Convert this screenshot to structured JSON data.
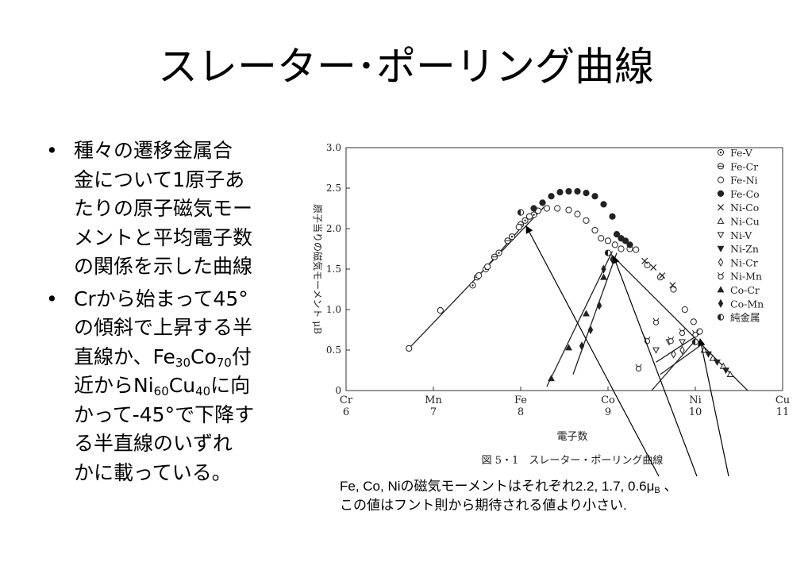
{
  "slide": {
    "title": "スレーター･ポーリング曲線"
  },
  "bullets": [
    {
      "lines": [
        "種々の遷移金属合",
        "金について1原子あ",
        "たりの原子磁気モー",
        "メントと平均電子数",
        "の関係を示した曲線"
      ]
    },
    {
      "lines": [
        [
          "Crから始まって45°"
        ],
        [
          "の傾斜で上昇する半"
        ],
        [
          "直線か、Fe",
          {
            "sub": "30"
          },
          "Co",
          {
            "sub": "70"
          },
          "付"
        ],
        [
          "近からNi",
          {
            "sub": "60"
          },
          "Cu",
          {
            "sub": "40"
          },
          "に向"
        ],
        [
          "かって-45°で下降す"
        ],
        [
          "る半直線のいずれ"
        ],
        [
          "かに載っている。"
        ]
      ]
    }
  ],
  "bullet_marker": "•",
  "caption": {
    "line1_main": "Fe, Co, Niの磁気モーメントはそれぞれ2.2, 1.7, 0.6μ",
    "line1_sub": "B",
    "line1_tail": " 、",
    "line2": "この値はフント則から期待される値より小さい."
  },
  "chart_data": {
    "type": "scatter",
    "title": "図 5・1　スレーター・ポーリング曲線",
    "xlabel": "電子数",
    "ylabel": "原子当りの磁気モーメント μB",
    "xlim": [
      6,
      11
    ],
    "ylim": [
      0,
      3.0
    ],
    "x_ticks": [
      {
        "x": 6,
        "elem": "Cr",
        "num": "6"
      },
      {
        "x": 7,
        "elem": "Mn",
        "num": "7"
      },
      {
        "x": 8,
        "elem": "Fe",
        "num": "8"
      },
      {
        "x": 9,
        "elem": "Co",
        "num": "9"
      },
      {
        "x": 10,
        "elem": "Ni",
        "num": "10"
      },
      {
        "x": 11,
        "elem": "Cu",
        "num": "11"
      }
    ],
    "y_ticks": [
      0,
      0.5,
      1.0,
      1.5,
      2.0,
      2.5,
      3.0
    ],
    "y_tick_labels": [
      "0",
      "0.5",
      "1.0",
      "1.5",
      "2.0",
      "2.5",
      "3.0"
    ],
    "legend_position": "top-right",
    "series": [
      {
        "name": "Fe-V",
        "marker": "circle-dot",
        "points": [
          [
            7.45,
            1.3
          ],
          [
            7.6,
            1.5
          ],
          [
            7.75,
            1.7
          ],
          [
            7.9,
            1.9
          ],
          [
            8.05,
            2.1
          ],
          [
            8.15,
            2.17
          ]
        ]
      },
      {
        "name": "Fe-Cr",
        "marker": "circle-bar",
        "points": [
          [
            7.5,
            1.4
          ],
          [
            7.7,
            1.65
          ],
          [
            7.85,
            1.85
          ],
          [
            8.0,
            2.05
          ]
        ]
      },
      {
        "name": "Fe-Ni",
        "marker": "circle-open",
        "points": [
          [
            6.72,
            0.52
          ],
          [
            7.08,
            0.99
          ],
          [
            7.52,
            1.42
          ],
          [
            7.62,
            1.53
          ],
          [
            7.98,
            2.02
          ],
          [
            8.1,
            2.15
          ],
          [
            8.2,
            2.22
          ],
          [
            8.3,
            2.25
          ],
          [
            8.42,
            2.25
          ],
          [
            8.55,
            2.23
          ],
          [
            8.65,
            2.18
          ],
          [
            8.75,
            2.1
          ],
          [
            8.85,
            1.98
          ],
          [
            8.92,
            1.88
          ],
          [
            9.0,
            1.85
          ],
          [
            9.08,
            1.8
          ],
          [
            9.15,
            1.75
          ],
          [
            9.25,
            1.75
          ],
          [
            9.32,
            1.74
          ],
          [
            9.45,
            1.55
          ],
          [
            9.6,
            1.4
          ],
          [
            9.75,
            1.25
          ],
          [
            9.88,
            1.0
          ],
          [
            9.98,
            0.85
          ],
          [
            10.05,
            0.73
          ]
        ]
      },
      {
        "name": "Fe-Co",
        "marker": "circle-filled",
        "points": [
          [
            8.15,
            2.25
          ],
          [
            8.25,
            2.32
          ],
          [
            8.35,
            2.4
          ],
          [
            8.45,
            2.45
          ],
          [
            8.55,
            2.46
          ],
          [
            8.65,
            2.46
          ],
          [
            8.75,
            2.44
          ],
          [
            8.85,
            2.4
          ],
          [
            8.95,
            2.3
          ],
          [
            9.05,
            2.15
          ],
          [
            9.1,
            1.93
          ],
          [
            9.15,
            1.88
          ],
          [
            9.2,
            1.85
          ],
          [
            9.25,
            1.8
          ]
        ]
      },
      {
        "name": "Ni-Co",
        "marker": "cross",
        "points": [
          [
            9.42,
            1.6
          ],
          [
            9.52,
            1.52
          ],
          [
            9.62,
            1.42
          ],
          [
            9.74,
            1.3
          ]
        ]
      },
      {
        "name": "Ni-Cu",
        "marker": "triangle-up",
        "points": [
          [
            10.1,
            0.5
          ],
          [
            10.2,
            0.4
          ],
          [
            10.32,
            0.3
          ],
          [
            10.4,
            0.2
          ]
        ]
      },
      {
        "name": "Ni-V",
        "marker": "triangle-down",
        "points": [
          [
            9.55,
            0.5
          ],
          [
            9.7,
            0.6
          ],
          [
            9.85,
            0.6
          ]
        ]
      },
      {
        "name": "Ni-Zn",
        "marker": "triangle-down-filled",
        "points": [
          [
            10.15,
            0.45
          ],
          [
            10.25,
            0.35
          ],
          [
            10.35,
            0.25
          ]
        ]
      },
      {
        "name": "Ni-Cr",
        "marker": "diamond-open",
        "points": [
          [
            9.75,
            0.45
          ],
          [
            9.85,
            0.5
          ]
        ]
      },
      {
        "name": "Ni-Mn",
        "marker": "mn",
        "points": [
          [
            9.45,
            0.62
          ],
          [
            9.72,
            0.62
          ],
          [
            9.85,
            0.72
          ],
          [
            10.0,
            0.7
          ],
          [
            9.35,
            0.28
          ],
          [
            9.55,
            0.85
          ]
        ]
      },
      {
        "name": "Co-Cr",
        "marker": "triangle-up-filled",
        "points": [
          [
            8.35,
            0.15
          ],
          [
            8.55,
            0.53
          ],
          [
            8.75,
            0.95
          ],
          [
            8.95,
            1.4
          ]
        ]
      },
      {
        "name": "Co-Mn",
        "marker": "diamond-filled",
        "points": [
          [
            8.95,
            1.5
          ],
          [
            9.05,
            1.62
          ],
          [
            8.7,
            0.55
          ],
          [
            8.8,
            0.75
          ],
          [
            8.9,
            1.05
          ]
        ]
      },
      {
        "name": "純金属",
        "marker": "half-filled",
        "points": [
          [
            8.0,
            2.2
          ],
          [
            9.0,
            1.7
          ],
          [
            10.0,
            0.6
          ]
        ]
      }
    ],
    "reference_lines": [
      [
        [
          6.72,
          0.52
        ],
        [
          8.27,
          2.27
        ]
      ],
      [
        [
          7.52,
          1.42
        ],
        [
          8.02,
          2.03
        ]
      ],
      [
        [
          8.3,
          0.05
        ],
        [
          9.05,
          1.72
        ]
      ],
      [
        [
          8.6,
          0.2
        ],
        [
          9.1,
          1.7
        ]
      ],
      [
        [
          9.0,
          1.72
        ],
        [
          10.6,
          0.0
        ]
      ],
      [
        [
          9.5,
          0.0
        ],
        [
          10.0,
          0.62
        ]
      ],
      [
        [
          9.55,
          0.35
        ],
        [
          10.05,
          0.7
        ]
      ],
      [
        [
          9.6,
          0.2
        ],
        [
          10.05,
          0.55
        ]
      ]
    ]
  }
}
